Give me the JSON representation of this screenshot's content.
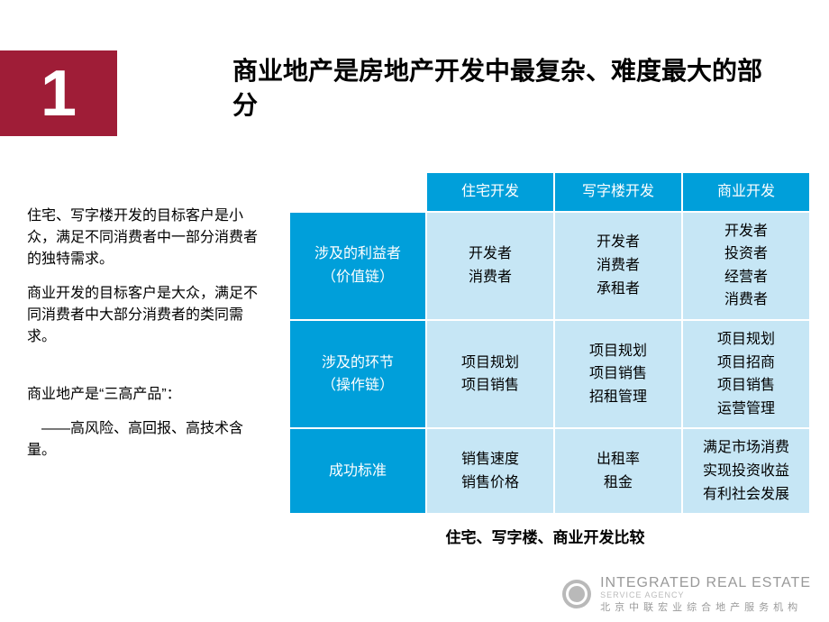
{
  "badge": {
    "number": "1"
  },
  "title": "商业地产是房地产开发中最复杂、难度最大的部分",
  "sideText": {
    "p1": "住宅、写字楼开发的目标客户是小众，满足不同消费者中一部分消费者的独特需求。",
    "p2": "商业开发的目标客户是大众，满足不同消费者中大部分消费者的类同需求。",
    "p3a": "商业地产是“三高产品”：",
    "p3b": " ——高风险、高回报、高技术含量。"
  },
  "table": {
    "columns": [
      "住宅开发",
      "写字楼开发",
      "商业开发"
    ],
    "rows": [
      {
        "header": "涉及的利益者\n（价值链）",
        "cells": [
          "开发者\n消费者",
          "开发者\n消费者\n承租者",
          "开发者\n投资者\n经营者\n消费者"
        ]
      },
      {
        "header": "涉及的环节\n（操作链）",
        "cells": [
          "项目规划\n项目销售",
          "项目规划\n项目销售\n招租管理",
          "项目规划\n项目招商\n项目销售\n运营管理"
        ]
      },
      {
        "header": "成功标准",
        "cells": [
          "销售速度\n销售价格",
          "出租率\n租金",
          "满足市场消费\n实现投资收益\n有利社会发展"
        ]
      }
    ]
  },
  "caption": "住宅、写字楼、商业开发比较",
  "footer": {
    "en": "INTEGRATED REAL ESTATE",
    "enSub": "SERVICE AGENCY",
    "cn": "北京中联宏业综合地产服务机构"
  },
  "colors": {
    "badgeBg": "#9f1d37",
    "tableHeaderBg": "#009fda",
    "tableCellBg": "#c6e6f5"
  }
}
